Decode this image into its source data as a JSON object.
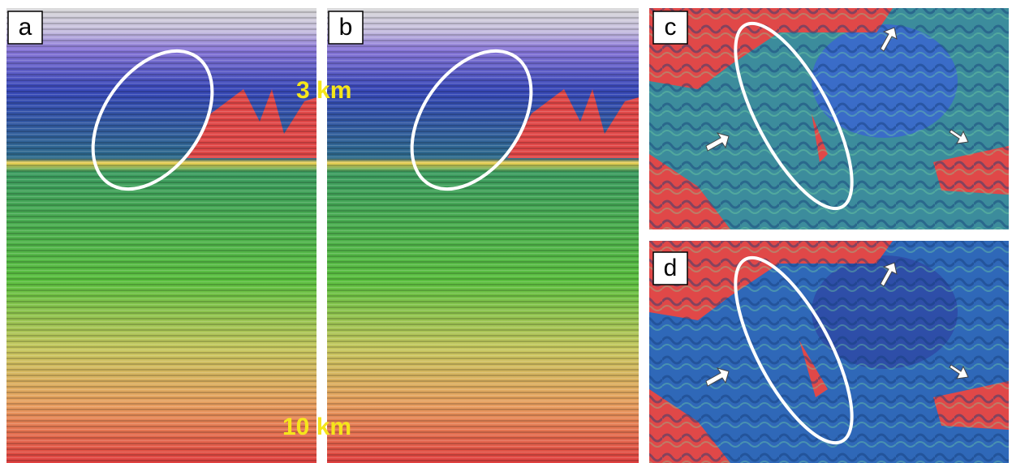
{
  "panels": [
    {
      "label": "a"
    },
    {
      "label": "b"
    },
    {
      "label": "c"
    },
    {
      "label": "d"
    }
  ],
  "annotations": [
    "3 km",
    "10 km"
  ]
}
